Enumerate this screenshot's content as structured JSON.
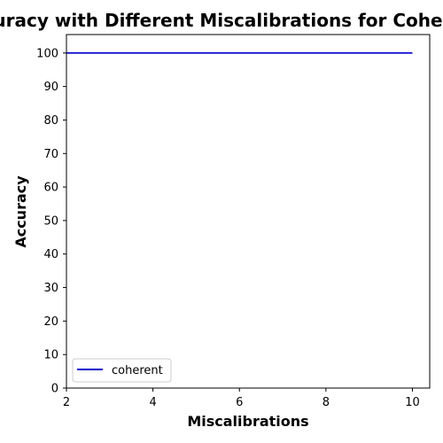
{
  "chart_data": {
    "type": "line",
    "title": "Accuracy with Different Miscalibrations for Coherent",
    "xlabel": "Miscalibrations",
    "ylabel": "Accuracy",
    "xlim": [
      2,
      10.4
    ],
    "ylim": [
      0,
      105.5
    ],
    "xticks": [
      2,
      4,
      6,
      8,
      10
    ],
    "yticks": [
      0,
      10,
      20,
      30,
      40,
      50,
      60,
      70,
      80,
      90,
      100
    ],
    "grid": false,
    "legend_position": "lower-left",
    "series": [
      {
        "name": "coherent",
        "color": "#0000cc",
        "x": [
          2,
          10
        ],
        "y": [
          100,
          100
        ]
      }
    ]
  }
}
